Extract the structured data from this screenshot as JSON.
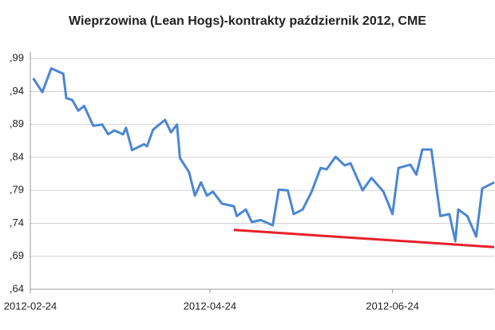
{
  "chart_data": {
    "type": "line",
    "title": "Wieprzowina (Lean Hogs)-kontrakty październik 2012, CME",
    "series": [
      {
        "color": "#4a86d4",
        "x": [
          "2012-02-25",
          "2012-02-28",
          "2012-03-02",
          "2012-03-06",
          "2012-03-07",
          "2012-03-09",
          "2012-03-11",
          "2012-03-13",
          "2012-03-16",
          "2012-03-19",
          "2012-03-21",
          "2012-03-23",
          "2012-03-26",
          "2012-03-27",
          "2012-03-29",
          "2012-04-02",
          "2012-04-03",
          "2012-04-05",
          "2012-04-09",
          "2012-04-11",
          "2012-04-13",
          "2012-04-14",
          "2012-04-17",
          "2012-04-19",
          "2012-04-21",
          "2012-04-23",
          "2012-04-25",
          "2012-04-28",
          "2012-05-02",
          "2012-05-03",
          "2012-05-06",
          "2012-05-08",
          "2012-05-11",
          "2012-05-15",
          "2012-05-17",
          "2012-05-20",
          "2012-05-22",
          "2012-05-25",
          "2012-05-28",
          "2012-05-31",
          "2012-06-02",
          "2012-06-05",
          "2012-06-08",
          "2012-06-10",
          "2012-06-14",
          "2012-06-17",
          "2012-06-21",
          "2012-06-24",
          "2012-06-26",
          "2012-06-30",
          "2012-07-02",
          "2012-07-04",
          "2012-07-07",
          "2012-07-10",
          "2012-07-13",
          "2012-07-15",
          "2012-07-16",
          "2012-07-19",
          "2012-07-22",
          "2012-07-24",
          "2012-07-28"
        ],
        "values": [
          0.96,
          0.939,
          0.975,
          0.967,
          0.93,
          0.927,
          0.911,
          0.918,
          0.888,
          0.89,
          0.875,
          0.881,
          0.875,
          0.885,
          0.851,
          0.86,
          0.857,
          0.882,
          0.897,
          0.878,
          0.89,
          0.839,
          0.818,
          0.782,
          0.802,
          0.782,
          0.788,
          0.77,
          0.766,
          0.751,
          0.761,
          0.742,
          0.745,
          0.737,
          0.791,
          0.79,
          0.754,
          0.761,
          0.788,
          0.824,
          0.822,
          0.841,
          0.828,
          0.831,
          0.79,
          0.809,
          0.788,
          0.754,
          0.824,
          0.829,
          0.814,
          0.852,
          0.852,
          0.751,
          0.754,
          0.713,
          0.761,
          0.751,
          0.72,
          0.793,
          0.802
        ]
      },
      {
        "color": "#e8202a",
        "x": [
          "2012-05-02",
          "2012-07-28"
        ],
        "values": [
          0.73,
          0.704
        ]
      }
    ],
    "xlim": [
      "2012-02-24",
      "2012-07-28"
    ],
    "xticks": [
      "2012-02-24",
      "2012-04-24",
      "2012-06-24"
    ],
    "ylim": [
      0.64,
      1.0
    ],
    "yticks": [
      {
        "value": 0.64,
        "label": ",64"
      },
      {
        "value": 0.69,
        "label": ",69"
      },
      {
        "value": 0.74,
        "label": ",74"
      },
      {
        "value": 0.79,
        "label": ",79"
      },
      {
        "value": 0.84,
        "label": ",84"
      },
      {
        "value": 0.89,
        "label": ",89"
      },
      {
        "value": 0.94,
        "label": ",94"
      },
      {
        "value": 0.99,
        "label": ",99"
      }
    ],
    "grid": true
  }
}
